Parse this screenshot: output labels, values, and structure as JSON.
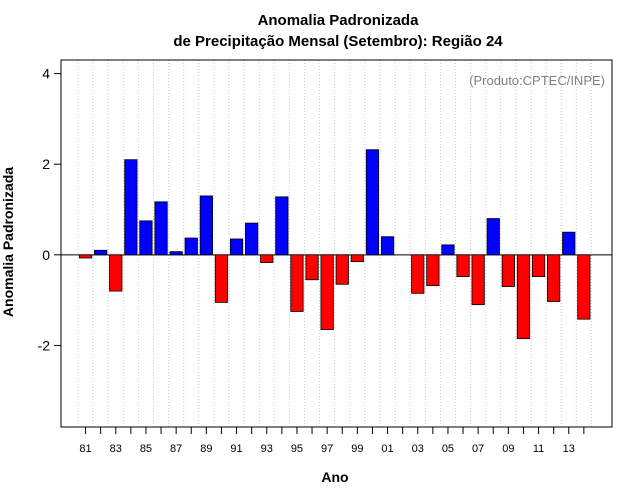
{
  "chart_data": {
    "type": "bar",
    "title_line1": "Anomalia Padronizada",
    "title_line2": "de Precipitação Mensal (Setembro): Região 24",
    "xlabel": "Ano",
    "ylabel": "Anomalia Padronizada",
    "credit": "(Produto:CPTEC/INPE)",
    "ylim": [
      -3.8,
      4.3
    ],
    "yticks": [
      -2,
      0,
      2,
      4
    ],
    "ytick_labels": [
      "-2",
      "0",
      "2",
      "4"
    ],
    "categories": [
      "81",
      "82",
      "83",
      "84",
      "85",
      "86",
      "87",
      "88",
      "89",
      "90",
      "91",
      "92",
      "93",
      "94",
      "95",
      "96",
      "97",
      "98",
      "99",
      "00",
      "01",
      "02",
      "03",
      "04",
      "05",
      "06",
      "07",
      "08",
      "09",
      "10",
      "11",
      "12",
      "13",
      "14"
    ],
    "x_tick_labels": [
      "81",
      "83",
      "85",
      "87",
      "89",
      "91",
      "93",
      "95",
      "97",
      "99",
      "01",
      "03",
      "05",
      "07",
      "09",
      "11",
      "13"
    ],
    "values": [
      -0.07,
      0.1,
      -0.8,
      2.1,
      0.75,
      1.17,
      0.07,
      0.37,
      1.3,
      -1.05,
      0.35,
      0.7,
      -0.17,
      1.28,
      -1.25,
      -0.55,
      -1.65,
      -0.65,
      -0.15,
      2.32,
      0.4,
      0.0,
      -0.85,
      -0.68,
      0.22,
      -0.48,
      -1.1,
      0.8,
      -0.7,
      -1.85,
      -0.48,
      -1.03,
      0.5,
      -1.42
    ],
    "positive_color": "#0000ff",
    "negative_color": "#ff0000",
    "grid": "vertical dotted",
    "credit_color": "#808080"
  }
}
